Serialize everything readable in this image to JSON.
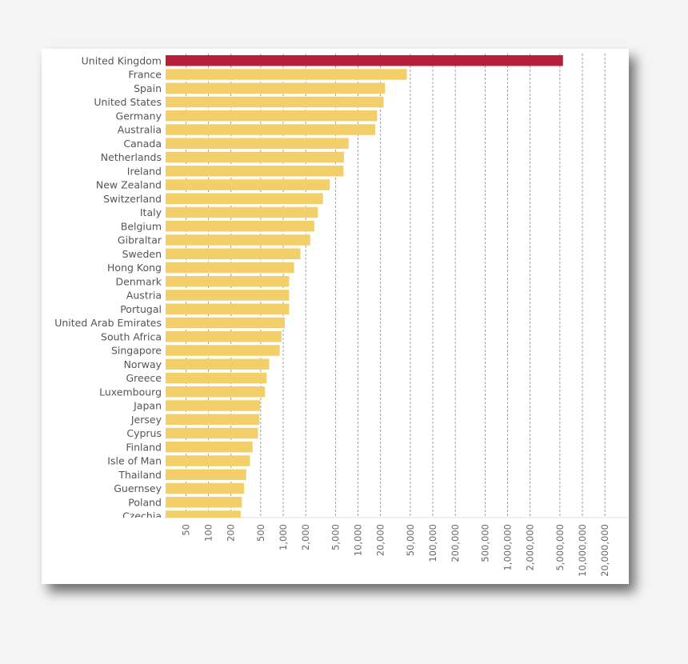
{
  "chart_data": {
    "type": "bar",
    "orientation": "horizontal",
    "x_scale": "log",
    "xlim": [
      20,
      30000000
    ],
    "highlight_color": "#b81f3d",
    "bar_color": "#f3cf6a",
    "grid": "vertical dashed",
    "categories": [
      "United Kingdom",
      "France",
      "Spain",
      "United States",
      "Germany",
      "Australia",
      "Canada",
      "Netherlands",
      "Ireland",
      "New Zealand",
      "Switzerland",
      "Italy",
      "Belgium",
      "Gibraltar",
      "Sweden",
      "Hong Kong",
      "Denmark",
      "Austria",
      "Portugal",
      "United Arab Emirates",
      "South Africa",
      "Singapore",
      "Norway",
      "Greece",
      "Luxembourg",
      "Japan",
      "Jersey",
      "Cyprus",
      "Finland",
      "Isle of Man",
      "Thailand",
      "Guernsey",
      "Poland",
      "Czechia"
    ],
    "values": [
      5500000,
      45000,
      23000,
      22000,
      18000,
      17000,
      7500,
      6500,
      6400,
      4200,
      3400,
      2900,
      2600,
      2300,
      1700,
      1400,
      1200,
      1200,
      1200,
      1050,
      950,
      900,
      650,
      600,
      570,
      490,
      480,
      460,
      390,
      360,
      320,
      300,
      280,
      270
    ],
    "highlight": [
      "United Kingdom"
    ],
    "x_ticks": [
      "50",
      "100",
      "200",
      "500",
      "1,000",
      "2,000",
      "5,000",
      "10,000",
      "20,000",
      "50,000",
      "100,000",
      "200,000",
      "500,000",
      "1,000,000",
      "2,000,000",
      "5,000,000",
      "10,000,000",
      "20,000,000"
    ],
    "x_tick_values": [
      50,
      100,
      200,
      500,
      1000,
      2000,
      5000,
      10000,
      20000,
      50000,
      100000,
      200000,
      500000,
      1000000,
      2000000,
      5000000,
      10000000,
      20000000
    ]
  }
}
